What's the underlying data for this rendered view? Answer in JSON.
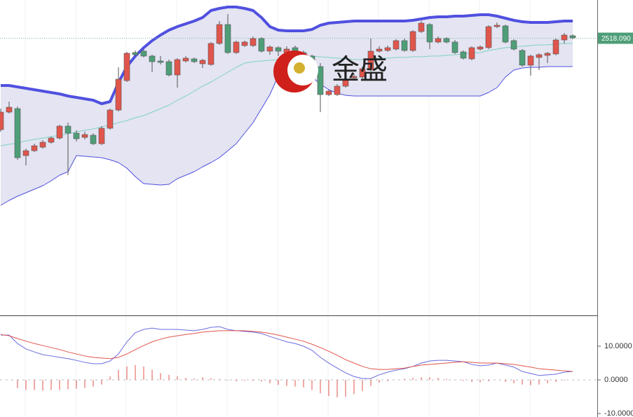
{
  "chart_data": [
    {
      "type": "candlestick",
      "watermark": "金盛",
      "ylim": [
        2439,
        2529
      ],
      "yticks": [
        {
          "value": 2518.09,
          "label": "2518.090"
        }
      ],
      "up_color": "#e0554c",
      "down_color": "#4e9e78",
      "band_fill": "#e4e4f2",
      "open": [
        2492,
        2497,
        2498,
        2484.6,
        2486,
        2487,
        2488.4,
        2489.6,
        2493,
        2491,
        2489.8,
        2490.4,
        2488,
        2492.4,
        2497.6,
        2506,
        2514,
        2514.4,
        2513,
        2511.6,
        2511.4,
        2507.6,
        2511.6,
        2512.2,
        2510.8,
        2510.6,
        2516.6,
        2522,
        2514,
        2516,
        2516,
        2518,
        2514.4,
        2515.4,
        2514,
        2515.4,
        2514,
        2513,
        2510,
        2502,
        2502,
        2504.4,
        2506.8,
        2507,
        2509,
        2514.4,
        2514.6,
        2515,
        2517.4,
        2514.6,
        2520,
        2522,
        2517,
        2518,
        2517,
        2514.2,
        2512.2,
        2515,
        2515.4,
        2521.4,
        2521.6,
        2517.4,
        2514.6,
        2510.4,
        2512.6,
        2513.2,
        2513.6,
        2517.6,
        2518.8
      ],
      "high": [
        2498,
        2500,
        2498.6,
        2486.6,
        2488,
        2489,
        2490,
        2493.4,
        2494,
        2491.8,
        2491.4,
        2491,
        2493,
        2498,
        2509.8,
        2514.2,
        2514.6,
        2515,
        2513.4,
        2513,
        2512,
        2512.4,
        2513,
        2512.6,
        2512.2,
        2517,
        2523,
        2525,
        2517.4,
        2517.4,
        2518.6,
        2518.4,
        2516,
        2515.8,
        2515.8,
        2516,
        2514.6,
        2513.4,
        2511,
        2503.4,
        2505,
        2507,
        2508,
        2510,
        2518,
        2515.8,
        2516,
        2517.8,
        2518,
        2520.4,
        2523,
        2522.4,
        2518.6,
        2518.4,
        2517.6,
        2514.6,
        2515.8,
        2516,
        2521.8,
        2522.6,
        2522,
        2517.8,
        2515,
        2513.4,
        2513.8,
        2514.2,
        2518,
        2519.6,
        2519.2
      ],
      "low": [
        2491.4,
        2496.6,
        2483.4,
        2481.8,
        2485.6,
        2486.6,
        2488,
        2489.2,
        2479,
        2488.6,
        2489.2,
        2487.6,
        2487.6,
        2492,
        2497.2,
        2505.6,
        2513,
        2512.6,
        2508.4,
        2510.6,
        2507.2,
        2504,
        2511.2,
        2511,
        2509.6,
        2510.2,
        2516.2,
        2513.6,
        2513.6,
        2515.6,
        2515.6,
        2514,
        2513.4,
        2513,
        2513.4,
        2513.6,
        2508,
        2509.6,
        2497,
        2501.6,
        2501.6,
        2504,
        2506.4,
        2506.6,
        2508.6,
        2514,
        2514.2,
        2514.6,
        2514.2,
        2514.2,
        2519.6,
        2515,
        2516.6,
        2516.6,
        2513.6,
        2512,
        2511.8,
        2514.6,
        2515,
        2521,
        2516.6,
        2514.6,
        2510,
        2507.4,
        2509,
        2511,
        2513.2,
        2516.6,
        2517.8
      ],
      "close": [
        2497,
        2498.4,
        2484,
        2486,
        2487.4,
        2488.4,
        2489.6,
        2493,
        2491,
        2489.4,
        2490.6,
        2488,
        2492.4,
        2497.6,
        2506.4,
        2513.8,
        2513.4,
        2513,
        2511.4,
        2511.2,
        2507.6,
        2512,
        2512.4,
        2511.4,
        2511.8,
        2516.6,
        2522,
        2514,
        2517,
        2517,
        2518,
        2514.4,
        2515.6,
        2514.4,
        2515,
        2514,
        2509.6,
        2510,
        2502,
        2503,
        2504.4,
        2506.4,
        2507.2,
        2509.4,
        2514.4,
        2515,
        2515.4,
        2517.4,
        2514.6,
        2520,
        2522.4,
        2517,
        2518,
        2517,
        2514,
        2512.4,
        2515.4,
        2515.6,
        2521.4,
        2521.8,
        2517,
        2515,
        2510.4,
        2513,
        2513.4,
        2513.8,
        2517.6,
        2519,
        2518.2
      ],
      "bands": [
        {
          "color": "#5050e0",
          "width": 4,
          "values": [
            2504.6,
            2504.6,
            2504.2,
            2503.8,
            2503.4,
            2503,
            2502.6,
            2502.2,
            2501.6,
            2501.2,
            2500.8,
            2500.4,
            2499.4,
            2500,
            2505.4,
            2510,
            2513,
            2515.4,
            2517.4,
            2519,
            2520.4,
            2521.4,
            2522.2,
            2523,
            2524,
            2526,
            2526.6,
            2527,
            2527,
            2526.6,
            2526,
            2524,
            2521.4,
            2520.4,
            2520.2,
            2520.2,
            2520.2,
            2520.6,
            2521.8,
            2522.4,
            2522.6,
            2522.8,
            2523,
            2523,
            2523,
            2523,
            2523,
            2523,
            2523,
            2523.2,
            2523.6,
            2524,
            2524.2,
            2524.2,
            2524.4,
            2524.4,
            2524.6,
            2524.8,
            2524.8,
            2524.4,
            2523.8,
            2523.2,
            2522.8,
            2522.6,
            2522.6,
            2522.6,
            2522.8,
            2523,
            2523
          ]
        },
        {
          "color": "#7fd3c0",
          "width": 1,
          "values": [
            2487.4,
            2487.8,
            2488.2,
            2488.8,
            2489.2,
            2489.6,
            2490,
            2490.4,
            2490.8,
            2491.4,
            2491.8,
            2492.2,
            2492.8,
            2493.4,
            2494,
            2494.6,
            2495.4,
            2496,
            2497,
            2498,
            2499,
            2500.4,
            2501.6,
            2503,
            2504.4,
            2505.6,
            2507,
            2508.4,
            2509.8,
            2511,
            2511.4,
            2511.6,
            2511.8,
            2512,
            2512.2,
            2512.6,
            2512.8,
            2513,
            2512.8,
            2512.6,
            2512.4,
            2512.2,
            2512,
            2512,
            2512.2,
            2512.4,
            2512.4,
            2512.6,
            2512.6,
            2512.8,
            2512.8,
            2513,
            2513,
            2513.2,
            2513.4,
            2513.6,
            2513.8,
            2514,
            2514.6,
            2515,
            2515.4,
            2515.6,
            2515.8,
            2516,
            2516.2,
            2516.2,
            2516.4,
            2516.6,
            2516.6
          ]
        },
        {
          "color": "#5050e0",
          "width": 1,
          "values": [
            2470.4,
            2471.8,
            2473,
            2474,
            2475,
            2476,
            2477.4,
            2479,
            2480,
            2484.6,
            2484.4,
            2484.2,
            2484,
            2483.4,
            2482.6,
            2481,
            2478.6,
            2476.6,
            2476.4,
            2476.2,
            2476.4,
            2478,
            2479,
            2480,
            2481.4,
            2482.6,
            2484,
            2486,
            2488,
            2491,
            2494,
            2498,
            2502,
            2507.4,
            2508.6,
            2509,
            2508,
            2507,
            2505,
            2503.4,
            2502.4,
            2501.8,
            2501.6,
            2501.6,
            2501.6,
            2501.6,
            2501.6,
            2501.6,
            2501.6,
            2501.6,
            2501.6,
            2501.6,
            2501.6,
            2501.6,
            2501.6,
            2501.6,
            2501.6,
            2501.6,
            2502.6,
            2504,
            2507,
            2509,
            2509.6,
            2509.8,
            2509.8,
            2510,
            2510,
            2510,
            2510
          ]
        }
      ]
    },
    {
      "type": "macd",
      "ylim": [
        -10.2,
        18.75
      ],
      "yticks": [
        {
          "value": 10,
          "label": "10.0000"
        },
        {
          "value": 0,
          "label": "0.0000"
        },
        {
          "value": -10,
          "label": "-10.0000"
        }
      ],
      "histogram": {
        "color": "#e0554c",
        "values": [
          0,
          0,
          -2.5,
          -3,
          -3,
          -3.2,
          -3,
          -3,
          -2.8,
          -2.6,
          -2.4,
          -2,
          -1.4,
          1,
          3,
          4,
          4.4,
          4,
          3,
          2,
          1.5,
          1,
          0.6,
          0.4,
          0.8,
          0.5,
          0.2,
          -0.2,
          -0.4,
          -0.3,
          -0.3,
          -0.5,
          -1,
          -1.5,
          -1.8,
          -2,
          -2.2,
          -3,
          -4,
          -4.8,
          -5.2,
          -5,
          -4.2,
          -3.3,
          -1.8,
          -0.8,
          -0.4,
          0,
          0.3,
          0.6,
          0.8,
          0.8,
          0.6,
          0.3,
          0,
          -0.3,
          -0.6,
          -0.7,
          -0.4,
          0,
          -0.6,
          -1,
          -1.4,
          -1.6,
          -1.4,
          -1,
          -0.6,
          -0.2,
          0
        ]
      },
      "series": [
        {
          "color": "#6b6be0",
          "values": [
            13.3,
            13.3,
            10.8,
            9.2,
            8.3,
            7.5,
            7.1,
            6.7,
            6.3,
            5.8,
            5.2,
            4.8,
            4.8,
            5.6,
            7.7,
            11.3,
            14,
            15,
            15.4,
            15,
            15,
            15,
            14.8,
            14.6,
            15,
            15.6,
            15.8,
            15,
            14.6,
            14.4,
            14.2,
            13.8,
            12.9,
            12.1,
            11.3,
            10.8,
            10,
            8.8,
            6.7,
            5,
            3.5,
            2.1,
            1,
            0.4,
            0.4,
            1.5,
            2.3,
            2.9,
            3.3,
            4,
            5,
            5.6,
            5.8,
            5.8,
            5.6,
            5.4,
            4.6,
            4.2,
            4.4,
            5,
            4.4,
            3.8,
            2.5,
            1.9,
            1.3,
            1.5,
            1.7,
            2.3,
            2.5
          ]
        },
        {
          "color": "#e0554c",
          "values": [
            13.5,
            13.1,
            12.3,
            11.5,
            10.8,
            10.2,
            9.6,
            9,
            8.3,
            7.7,
            7.1,
            6.7,
            6.5,
            6.3,
            6.7,
            7.7,
            9,
            10.2,
            11.3,
            12.1,
            12.7,
            13.1,
            13.5,
            13.8,
            14.2,
            14.4,
            14.6,
            14.6,
            14.6,
            14.6,
            14.4,
            14.2,
            13.8,
            13.3,
            12.7,
            12.1,
            11.5,
            10.6,
            9.6,
            8.5,
            7.3,
            6,
            5,
            4,
            3.3,
            3.1,
            3.1,
            3.3,
            3.5,
            4,
            4.4,
            4.6,
            4.8,
            5,
            5.2,
            5.4,
            5.2,
            5,
            5,
            5,
            4.8,
            4.6,
            4.2,
            3.8,
            3.3,
            3.1,
            2.9,
            2.7,
            2.5
          ]
        }
      ]
    }
  ]
}
